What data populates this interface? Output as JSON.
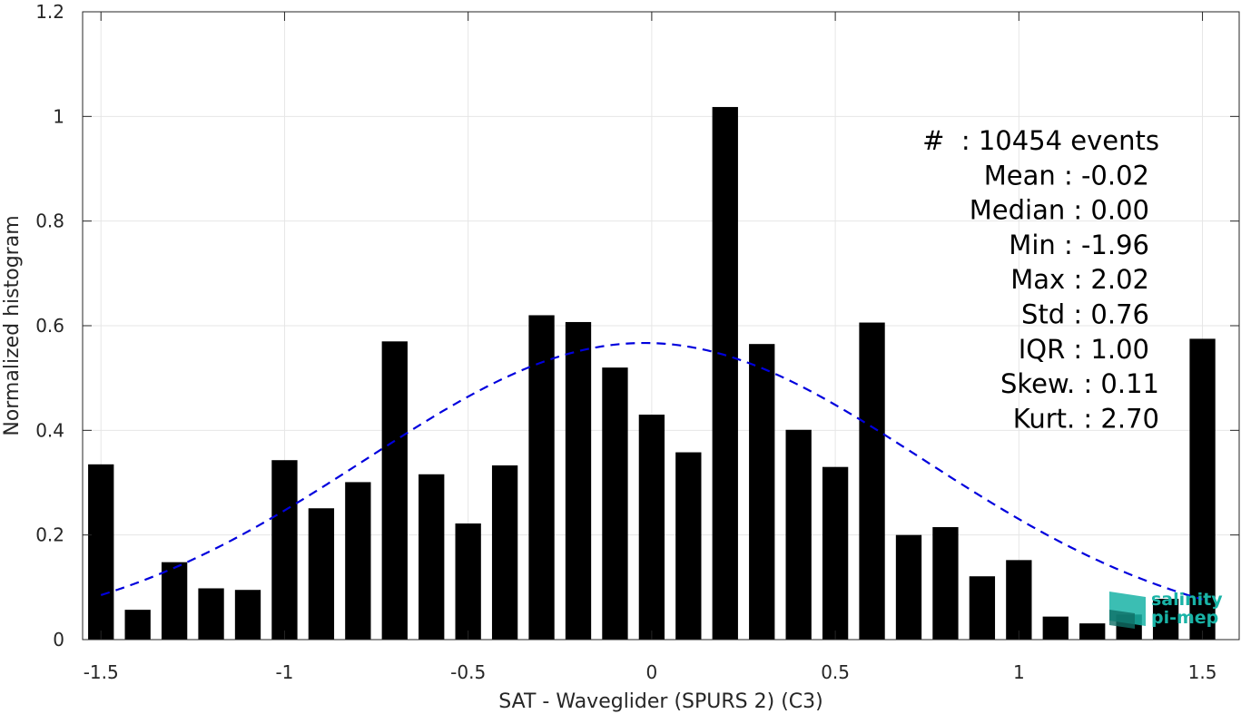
{
  "chart_data": {
    "type": "bar",
    "xlabel": "SAT - Waveglider (SPURS 2) (C3)",
    "ylabel": "Normalized histogram",
    "xlim": [
      -1.55,
      1.6
    ],
    "ylim": [
      0,
      1.2
    ],
    "xticks": [
      -1.5,
      -1,
      -0.5,
      0,
      0.5,
      1,
      1.5
    ],
    "xtick_labels": [
      "-1.5",
      "-1",
      "-0.5",
      "0",
      "0.5",
      "1",
      "1.5"
    ],
    "yticks": [
      0,
      0.2,
      0.4,
      0.6,
      0.8,
      1,
      1.2
    ],
    "ytick_labels": [
      "0",
      "0.2",
      "0.4",
      "0.6",
      "0.8",
      "1",
      "1.2"
    ],
    "grid": true,
    "bar_color": "#000000",
    "bar_width": 0.07,
    "bins": [
      -1.5,
      -1.4,
      -1.3,
      -1.2,
      -1.1,
      -1.0,
      -0.9,
      -0.8,
      -0.7,
      -0.6,
      -0.5,
      -0.4,
      -0.3,
      -0.2,
      -0.1,
      0.0,
      0.1,
      0.2,
      0.3,
      0.4,
      0.5,
      0.6,
      0.7,
      0.8,
      0.9,
      1.0,
      1.1,
      1.2,
      1.3,
      1.4,
      1.5
    ],
    "values": [
      0.335,
      0.057,
      0.148,
      0.098,
      0.095,
      0.343,
      0.251,
      0.301,
      0.57,
      0.316,
      0.222,
      0.333,
      0.62,
      0.607,
      0.52,
      0.43,
      0.358,
      1.018,
      0.565,
      0.401,
      0.33,
      0.606,
      0.2,
      0.215,
      0.121,
      0.152,
      0.044,
      0.031,
      0.048,
      0.078,
      0.575
    ],
    "fit_curve": {
      "type": "gaussian",
      "mean": -0.02,
      "std": 0.76,
      "peak": 0.567,
      "x_range": [
        -1.5,
        1.5
      ],
      "color": "#0000dd",
      "style": "dashed"
    },
    "annotation_lines": [
      "#  : 10454 events",
      "Mean : -0.02",
      "Median : 0.00",
      "Min : -1.96",
      "Max : 2.02",
      "Std : 0.76",
      "IQR : 1.00",
      "Skew. : 0.11",
      "Kurt. : 2.70"
    ]
  },
  "logo": {
    "line1": "salinity",
    "line2": "pi-mep",
    "color": "#19b3a6"
  }
}
